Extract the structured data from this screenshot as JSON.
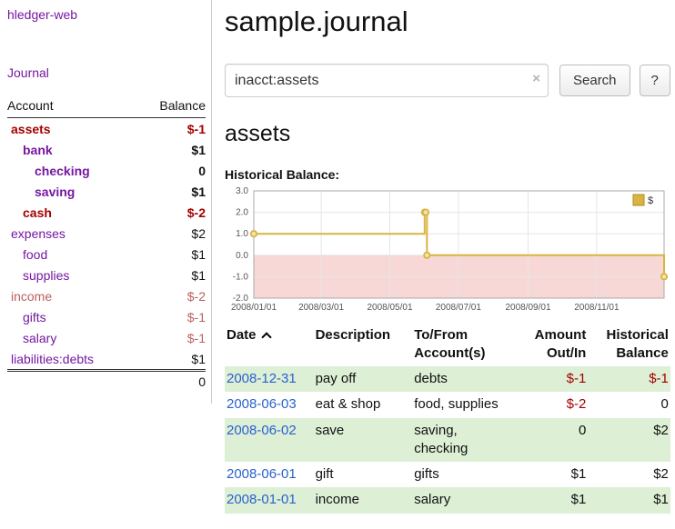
{
  "colors": {
    "link_purple": "#7617a1",
    "link_blue": "#2a62d0",
    "negative_strong": "#a40000",
    "negative_soft": "#bb5f5f",
    "row_green": "#ddefd5",
    "chart_line": "#d8b440",
    "chart_marker_fill": "#f3e3ab",
    "chart_negative_bg": "#f8d7d7",
    "chart_grid": "#e6e6e6",
    "chart_border": "#aaaaaa",
    "divider": "#cccccc"
  },
  "sidebar": {
    "app_title": "hledger-web",
    "journal_label": "Journal",
    "table": {
      "account_header": "Account",
      "balance_header": "Balance",
      "rows": [
        {
          "name": "assets",
          "balance": "$-1",
          "indent": 1,
          "bold": true,
          "name_tone": "neg",
          "balance_tone": "neg"
        },
        {
          "name": "bank",
          "balance": "$1",
          "indent": 2,
          "bold": true,
          "name_tone": "link",
          "balance_tone": "plain"
        },
        {
          "name": "checking",
          "balance": "0",
          "indent": 3,
          "bold": true,
          "name_tone": "link",
          "balance_tone": "plain"
        },
        {
          "name": "saving",
          "balance": "$1",
          "indent": 3,
          "bold": true,
          "name_tone": "link",
          "balance_tone": "plain"
        },
        {
          "name": "cash",
          "balance": "$-2",
          "indent": 2,
          "bold": true,
          "name_tone": "neg",
          "balance_tone": "neg"
        },
        {
          "name": "expenses",
          "balance": "$2",
          "indent": 1,
          "bold": false,
          "name_tone": "link",
          "balance_tone": "plain"
        },
        {
          "name": "food",
          "balance": "$1",
          "indent": 2,
          "bold": false,
          "name_tone": "link",
          "balance_tone": "plain"
        },
        {
          "name": "supplies",
          "balance": "$1",
          "indent": 2,
          "bold": false,
          "name_tone": "link",
          "balance_tone": "plain"
        },
        {
          "name": "income",
          "balance": "$-2",
          "indent": 1,
          "bold": false,
          "name_tone": "negsoft",
          "balance_tone": "negsoft"
        },
        {
          "name": "gifts",
          "balance": "$-1",
          "indent": 2,
          "bold": false,
          "name_tone": "link",
          "balance_tone": "negsoft"
        },
        {
          "name": "salary",
          "balance": "$-1",
          "indent": 2,
          "bold": false,
          "name_tone": "link",
          "balance_tone": "negsoft"
        },
        {
          "name": "liabilities:debts",
          "balance": "$1",
          "indent": 1,
          "bold": false,
          "name_tone": "link",
          "balance_tone": "plain"
        }
      ],
      "total": "0"
    }
  },
  "main": {
    "title": "sample.journal",
    "search": {
      "value": "inacct:assets",
      "clear_icon": "×",
      "button_label": "Search",
      "help_label": "?"
    },
    "account_heading": "assets",
    "chart_heading": "Historical Balance:"
  },
  "chart_data": {
    "type": "line",
    "step": true,
    "title": "Historical Balance:",
    "series": [
      {
        "name": "$",
        "points": [
          {
            "date": "2008-01-01",
            "value": 1
          },
          {
            "date": "2008-06-01",
            "value": 2
          },
          {
            "date": "2008-06-02",
            "value": 2
          },
          {
            "date": "2008-06-03",
            "value": 0
          },
          {
            "date": "2008-12-31",
            "value": -1
          }
        ]
      }
    ],
    "x_domain": [
      "2008-01-01",
      "2008-12-31"
    ],
    "x_tick_labels": [
      "2008/01/01",
      "2008/03/01",
      "2008/05/01",
      "2008/07/01",
      "2008/09/01",
      "2008/11/01"
    ],
    "y_ticks": [
      "3.0",
      "2.0",
      "1.0",
      "0.0",
      "-1.0",
      "-2.0"
    ],
    "ylim": [
      -2,
      3
    ],
    "grid": true,
    "negative_region_shaded": true,
    "legend": {
      "label": "$",
      "position": "top-right"
    }
  },
  "register": {
    "headers": {
      "date": "Date",
      "description": "Description",
      "accounts": "To/From Account(s)",
      "amount": "Amount Out/In",
      "balance": "Historical Balance"
    },
    "rows": [
      {
        "date": "2008-12-31",
        "description": "pay off",
        "accounts": "debts",
        "amount": "$-1",
        "amount_tone": "neg",
        "balance": "$-1",
        "balance_tone": "neg"
      },
      {
        "date": "2008-06-03",
        "description": "eat & shop",
        "accounts": "food, supplies",
        "amount": "$-2",
        "amount_tone": "neg",
        "balance": "0",
        "balance_tone": "plain"
      },
      {
        "date": "2008-06-02",
        "description": "save",
        "accounts": "saving, checking",
        "amount": "0",
        "amount_tone": "plain",
        "balance": "$2",
        "balance_tone": "plain"
      },
      {
        "date": "2008-06-01",
        "description": "gift",
        "accounts": "gifts",
        "amount": "$1",
        "amount_tone": "plain",
        "balance": "$2",
        "balance_tone": "plain"
      },
      {
        "date": "2008-01-01",
        "description": "income",
        "accounts": "salary",
        "amount": "$1",
        "amount_tone": "plain",
        "balance": "$1",
        "balance_tone": "plain"
      }
    ]
  }
}
